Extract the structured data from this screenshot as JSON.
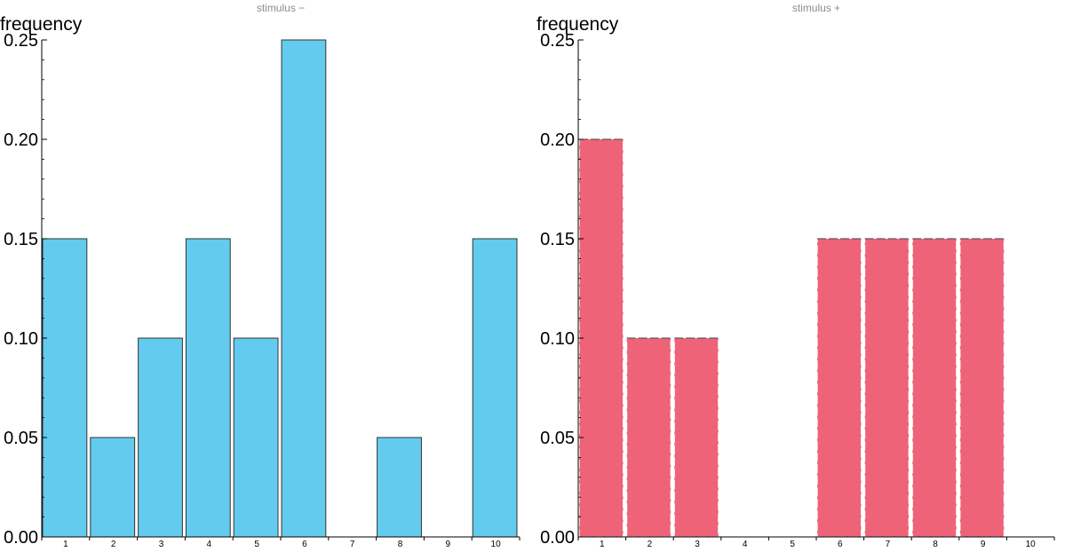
{
  "chart_data": [
    {
      "type": "bar",
      "title": "stimulus −",
      "ylabel": "frequency",
      "xlabel": "",
      "categories": [
        "1",
        "2",
        "3",
        "4",
        "5",
        "6",
        "7",
        "8",
        "9",
        "10"
      ],
      "values": [
        0.15,
        0.05,
        0.1,
        0.15,
        0.1,
        0.25,
        0.0,
        0.05,
        0.0,
        0.15
      ],
      "ylim": [
        0,
        0.25
      ],
      "yticks": [
        "0.00",
        "0.05",
        "0.10",
        "0.15",
        "0.20",
        "0.25"
      ],
      "color": "#63cbee",
      "edge": "solid",
      "grid": false
    },
    {
      "type": "bar",
      "title": "stimulus +",
      "ylabel": "frequency",
      "xlabel": "",
      "categories": [
        "1",
        "2",
        "3",
        "4",
        "5",
        "6",
        "7",
        "8",
        "9",
        "10"
      ],
      "values": [
        0.2,
        0.1,
        0.1,
        0.0,
        0.0,
        0.15,
        0.15,
        0.15,
        0.15,
        0.0
      ],
      "ylim": [
        0,
        0.25
      ],
      "yticks": [
        "0.00",
        "0.05",
        "0.10",
        "0.15",
        "0.20",
        "0.25"
      ],
      "color": "#ee6377",
      "edge": "dashed",
      "grid": false
    }
  ]
}
